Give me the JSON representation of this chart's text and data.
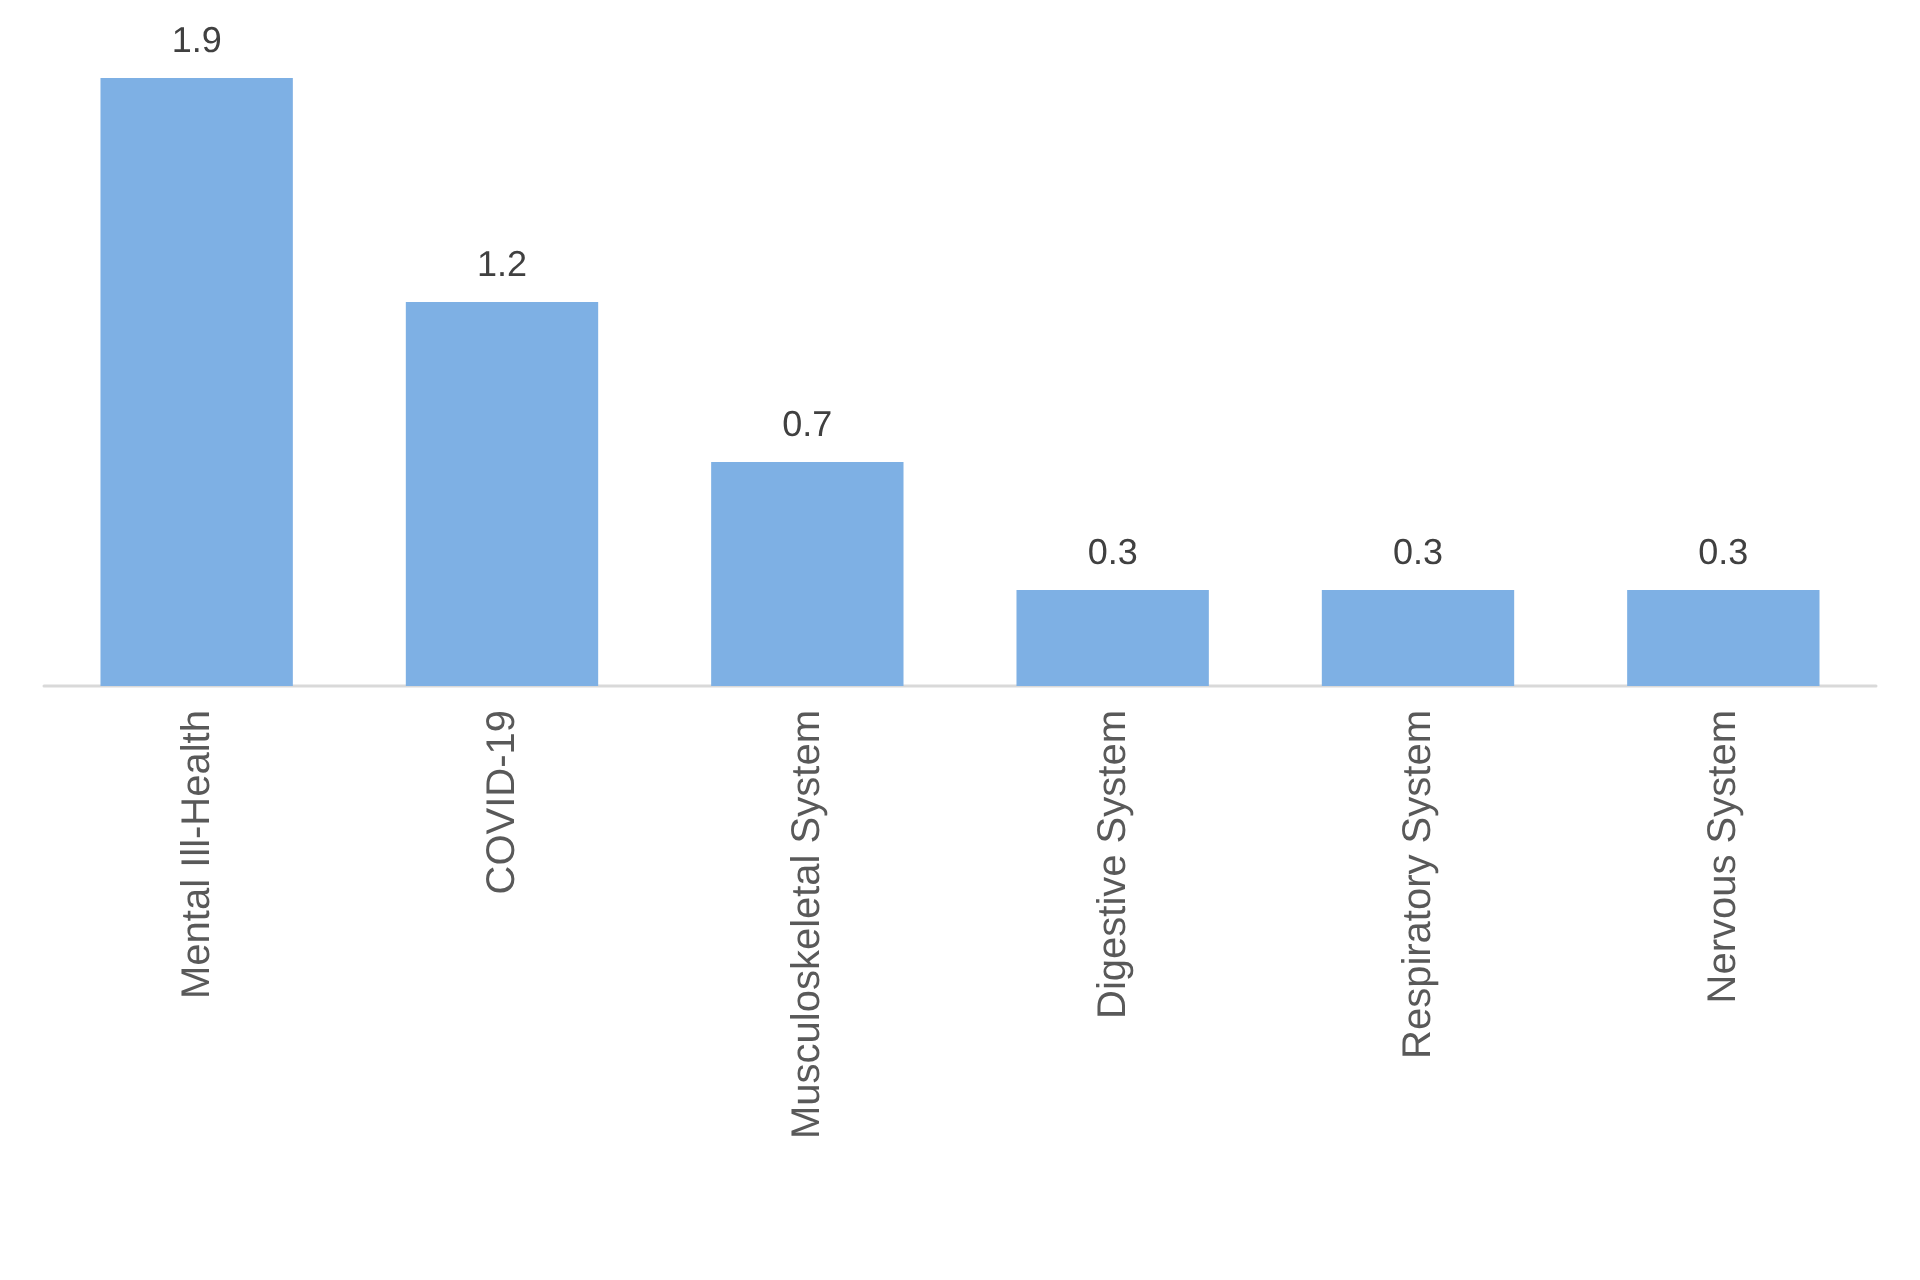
{
  "chart_data": {
    "type": "bar",
    "categories": [
      "Mental Ill-Health",
      "COVID-19",
      "Musculoskeletal System",
      "Digestive System",
      "Respiratory System",
      "Nervous System"
    ],
    "values": [
      1.9,
      1.2,
      0.7,
      0.3,
      0.3,
      0.3
    ],
    "color": "#7eb0e4",
    "data_labels": true
  }
}
